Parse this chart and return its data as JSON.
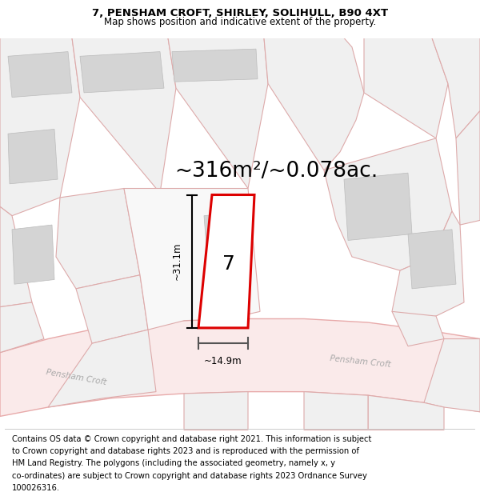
{
  "title_line1": "7, PENSHAM CROFT, SHIRLEY, SOLIHULL, B90 4XT",
  "title_line2": "Map shows position and indicative extent of the property.",
  "area_text": "~316m²/~0.078ac.",
  "dim_height": "~31.1m",
  "dim_width": "~14.9m",
  "number_label": "7",
  "street_label_left": "Pensham Croft",
  "street_label_right": "Pensham Croft",
  "footer_lines": [
    "Contains OS data © Crown copyright and database right 2021. This information is subject",
    "to Crown copyright and database rights 2023 and is reproduced with the permission of",
    "HM Land Registry. The polygons (including the associated geometry, namely x, y",
    "co-ordinates) are subject to Crown copyright and database rights 2023 Ordnance Survey",
    "100026316."
  ],
  "bg_color": "#ffffff",
  "plot_edge": "#dd0000",
  "road_fill": "#faeaea",
  "road_edge": "#e8aaaa",
  "parcel_fill": "#eeeeee",
  "parcel_edge": "#ddaaaa",
  "building_fill": "#d4d4d4",
  "building_edge": "#bbbbbb",
  "title_fontsize": 9.5,
  "subtitle_fontsize": 8.5,
  "area_fontsize": 19,
  "footer_fontsize": 7.2
}
